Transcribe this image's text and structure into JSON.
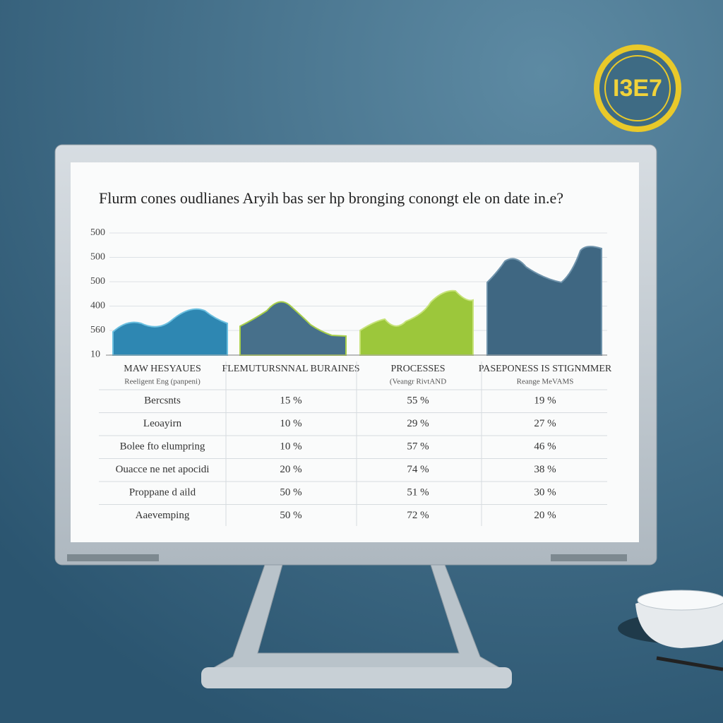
{
  "badge": {
    "title": "I3E7"
  },
  "screen": {
    "title": "Flurm cones oudlianes Aryih bas ser hp bronging conongt ele on date in.e?",
    "axis_labels": [
      "500",
      "500",
      "500",
      "400",
      "560",
      "10"
    ],
    "table": {
      "columns": [
        {
          "title": "MAW HESYAUES",
          "subtitle": "Reeligent Eng (panpeni)"
        },
        {
          "title": "FLEMUTURSNNAL BURAINES"
        },
        {
          "title": "PROCESSES",
          "subtitle": "(Veangr RivtAND"
        },
        {
          "title": "PASEPONESS IS STIGNMMER",
          "subtitle": "Reange MeVAMS"
        }
      ],
      "rows": [
        [
          "Bercsnts",
          "15 %",
          "55 %",
          "19 %"
        ],
        [
          "Leoayirn",
          "10 %",
          "29 %",
          "27 %"
        ],
        [
          "Bolee fto elumpring",
          "10 %",
          "57 %",
          "46 %"
        ],
        [
          "Ouacce ne net apocidi",
          "20 %",
          "74 %",
          "38 %"
        ],
        [
          "Proppane d aild",
          "50 %",
          "51 %",
          "30 %"
        ],
        [
          "Aaevemping",
          "50 %",
          "72 %",
          "20 %"
        ]
      ]
    }
  }
}
